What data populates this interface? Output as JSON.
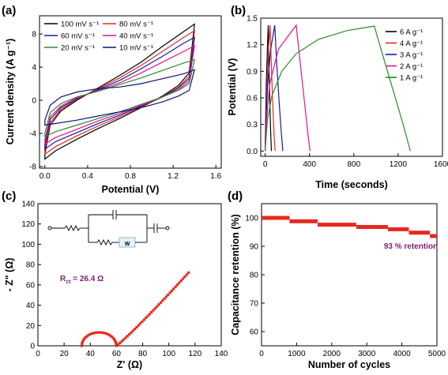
{
  "chart_data": [
    {
      "panel_label": "(a)",
      "type": "line",
      "xlabel": "Potential (V)",
      "ylabel": "Current density (A g⁻¹)",
      "xlim": [
        -0.05,
        1.65
      ],
      "ylim": [
        -8.2,
        10.2
      ],
      "x_ticks": [
        "0.0",
        "0.4",
        "0.8",
        "1.2",
        "1.6"
      ],
      "x_tick_values": [
        0.0,
        0.4,
        0.8,
        1.2,
        1.6
      ],
      "y_ticks": [
        "-8",
        "-4",
        "0",
        "4",
        "8"
      ],
      "y_tick_values": [
        -8,
        -4,
        0,
        4,
        8
      ],
      "legend_position": "top-left",
      "series": [
        {
          "name": "100 mV s⁻¹",
          "color": "#000000",
          "upper": [
            [
              0,
              -6.5
            ],
            [
              0.05,
              -3.0
            ],
            [
              0.15,
              -1.3
            ],
            [
              0.3,
              0.0
            ],
            [
              0.5,
              1.5
            ],
            [
              0.7,
              3.0
            ],
            [
              0.9,
              4.6
            ],
            [
              1.1,
              6.5
            ],
            [
              1.3,
              8.3
            ],
            [
              1.4,
              9.2
            ]
          ],
          "lower": [
            [
              0,
              -7.1
            ],
            [
              0.1,
              -6.1
            ],
            [
              0.3,
              -4.7
            ],
            [
              0.5,
              -3.4
            ],
            [
              0.7,
              -2.2
            ],
            [
              0.9,
              -0.9
            ],
            [
              1.1,
              0.5
            ],
            [
              1.25,
              1.8
            ],
            [
              1.35,
              3.3
            ],
            [
              1.4,
              9.2
            ]
          ]
        },
        {
          "name": "80 mV s⁻¹",
          "color": "#e8281e",
          "upper": [
            [
              0,
              -5.9
            ],
            [
              0.05,
              -2.7
            ],
            [
              0.15,
              -1.1
            ],
            [
              0.3,
              0.1
            ],
            [
              0.5,
              1.4
            ],
            [
              0.7,
              2.7
            ],
            [
              0.9,
              4.2
            ],
            [
              1.1,
              5.9
            ],
            [
              1.3,
              7.6
            ],
            [
              1.4,
              8.4
            ]
          ],
          "lower": [
            [
              0,
              -6.5
            ],
            [
              0.1,
              -5.6
            ],
            [
              0.3,
              -4.3
            ],
            [
              0.5,
              -3.1
            ],
            [
              0.7,
              -2.0
            ],
            [
              0.9,
              -0.8
            ],
            [
              1.1,
              0.4
            ],
            [
              1.25,
              1.6
            ],
            [
              1.35,
              2.9
            ],
            [
              1.4,
              8.4
            ]
          ]
        },
        {
          "name": "60 mV s⁻¹",
          "color": "#1a1aa8",
          "upper": [
            [
              0,
              -5.3
            ],
            [
              0.05,
              -2.3
            ],
            [
              0.15,
              -0.9
            ],
            [
              0.3,
              0.2
            ],
            [
              0.5,
              1.3
            ],
            [
              0.7,
              2.4
            ],
            [
              0.9,
              3.8
            ],
            [
              1.1,
              5.3
            ],
            [
              1.3,
              6.9
            ],
            [
              1.4,
              7.6
            ]
          ],
          "lower": [
            [
              0,
              -5.9
            ],
            [
              0.1,
              -5.0
            ],
            [
              0.3,
              -3.9
            ],
            [
              0.5,
              -2.8
            ],
            [
              0.7,
              -1.8
            ],
            [
              0.9,
              -0.7
            ],
            [
              1.1,
              0.4
            ],
            [
              1.25,
              1.5
            ],
            [
              1.35,
              2.6
            ],
            [
              1.4,
              7.6
            ]
          ]
        },
        {
          "name": "40 mV s⁻¹",
          "color": "#e0148c",
          "upper": [
            [
              0,
              -4.8
            ],
            [
              0.05,
              -2.0
            ],
            [
              0.15,
              -0.7
            ],
            [
              0.3,
              0.3
            ],
            [
              0.5,
              1.2
            ],
            [
              0.7,
              2.1
            ],
            [
              0.9,
              3.3
            ],
            [
              1.1,
              4.6
            ],
            [
              1.3,
              5.9
            ],
            [
              1.4,
              6.6
            ]
          ],
          "lower": [
            [
              0,
              -5.3
            ],
            [
              0.1,
              -4.5
            ],
            [
              0.3,
              -3.5
            ],
            [
              0.5,
              -2.5
            ],
            [
              0.7,
              -1.6
            ],
            [
              0.9,
              -0.6
            ],
            [
              1.1,
              0.4
            ],
            [
              1.25,
              1.3
            ],
            [
              1.35,
              2.3
            ],
            [
              1.4,
              6.6
            ]
          ]
        },
        {
          "name": "20 mV s⁻¹",
          "color": "#2a8c2a",
          "upper": [
            [
              0,
              -4.0
            ],
            [
              0.05,
              -1.5
            ],
            [
              0.15,
              -0.4
            ],
            [
              0.3,
              0.4
            ],
            [
              0.5,
              1.1
            ],
            [
              0.7,
              1.9
            ],
            [
              0.9,
              2.7
            ],
            [
              1.1,
              3.6
            ],
            [
              1.3,
              4.5
            ],
            [
              1.4,
              4.9
            ]
          ],
          "lower": [
            [
              0,
              -4.4
            ],
            [
              0.1,
              -3.8
            ],
            [
              0.3,
              -3.0
            ],
            [
              0.5,
              -2.2
            ],
            [
              0.7,
              -1.4
            ],
            [
              0.9,
              -0.5
            ],
            [
              1.1,
              0.4
            ],
            [
              1.25,
              1.2
            ],
            [
              1.35,
              2.0
            ],
            [
              1.4,
              4.9
            ]
          ]
        },
        {
          "name": "10 mV s⁻¹",
          "color": "#10107a",
          "upper": [
            [
              0,
              -2.4
            ],
            [
              0.05,
              -0.6
            ],
            [
              0.15,
              0.4
            ],
            [
              0.3,
              1.0
            ],
            [
              0.5,
              1.4
            ],
            [
              0.7,
              1.6
            ],
            [
              0.9,
              2.0
            ],
            [
              1.1,
              2.6
            ],
            [
              1.3,
              3.2
            ],
            [
              1.4,
              3.7
            ]
          ],
          "lower": [
            [
              0,
              -3.0
            ],
            [
              0.1,
              -2.8
            ],
            [
              0.3,
              -2.4
            ],
            [
              0.5,
              -1.9
            ],
            [
              0.7,
              -1.4
            ],
            [
              0.9,
              -0.9
            ],
            [
              1.1,
              -0.2
            ],
            [
              1.25,
              0.5
            ],
            [
              1.35,
              1.2
            ],
            [
              1.4,
              3.7
            ]
          ]
        }
      ]
    },
    {
      "panel_label": "(b)",
      "type": "line",
      "xlabel": "Time (seconds)",
      "ylabel": "Potential (V)",
      "xlim": [
        -40,
        1600
      ],
      "ylim": [
        -0.06,
        1.5
      ],
      "x_ticks": [
        "0",
        "400",
        "800",
        "1200",
        "1600"
      ],
      "x_tick_values": [
        0,
        400,
        800,
        1200,
        1600
      ],
      "y_ticks": [
        "0.0",
        "0.3",
        "0.6",
        "0.9",
        "1.2",
        "1.5"
      ],
      "y_tick_values": [
        0.0,
        0.3,
        0.6,
        0.9,
        1.2,
        1.5
      ],
      "legend_position": "top-right",
      "series": [
        {
          "name": "6 A g⁻¹",
          "color": "#000000",
          "x": [
            0,
            4,
            10,
            20,
            28,
            34,
            42,
            50,
            56
          ],
          "y": [
            0.0,
            0.35,
            0.75,
            1.15,
            1.42,
            0.95,
            0.55,
            0.2,
            0.0
          ]
        },
        {
          "name": "4 A g⁻¹",
          "color": "#e8281e",
          "x": [
            0,
            6,
            16,
            30,
            44,
            56,
            68,
            80,
            90
          ],
          "y": [
            0.0,
            0.35,
            0.75,
            1.15,
            1.42,
            0.95,
            0.55,
            0.2,
            0.0
          ]
        },
        {
          "name": "3 A g⁻¹",
          "color": "#1a1aa8",
          "x": [
            0,
            8,
            22,
            50,
            86,
            106,
            126,
            146,
            160
          ],
          "y": [
            0.0,
            0.35,
            0.75,
            1.15,
            1.42,
            0.95,
            0.55,
            0.2,
            0.0
          ]
        },
        {
          "name": "2 A g⁻¹",
          "color": "#e0148c",
          "x": [
            0,
            12,
            40,
            120,
            280,
            320,
            355,
            385,
            405
          ],
          "y": [
            0.0,
            0.35,
            0.75,
            1.15,
            1.42,
            0.95,
            0.55,
            0.2,
            0.0
          ]
        },
        {
          "name": "1 A g⁻¹",
          "color": "#2a8c2a",
          "x": [
            0,
            20,
            60,
            150,
            280,
            480,
            740,
            985,
            1010,
            1080,
            1170,
            1250,
            1310
          ],
          "y": [
            0.0,
            0.35,
            0.62,
            0.9,
            1.1,
            1.26,
            1.36,
            1.41,
            1.3,
            1.0,
            0.62,
            0.28,
            0.0
          ]
        }
      ]
    },
    {
      "panel_label": "(c)",
      "type": "scatter",
      "xlabel": "Z' (Ω)",
      "ylabel": "- Z\" (Ω)",
      "xlim": [
        0,
        140
      ],
      "ylim": [
        0,
        140
      ],
      "x_ticks": [
        "0",
        "20",
        "40",
        "60",
        "80",
        "100",
        "120",
        "140"
      ],
      "x_tick_values": [
        0,
        20,
        40,
        60,
        80,
        100,
        120,
        140
      ],
      "y_ticks": [
        "0",
        "20",
        "40",
        "60",
        "80",
        "100",
        "120",
        "140"
      ],
      "y_tick_values": [
        0,
        20,
        40,
        60,
        80,
        100,
        120,
        140
      ],
      "annotation": "R",
      "annotation_sub": "ct",
      "annotation_value": " = 26.4 Ω",
      "circuit_w_label": "W",
      "color": "#e8281e",
      "semicircle_start": 33.5,
      "semicircle_end": 59.9,
      "semicircle_points": 26,
      "tail_start": [
        59.9,
        0
      ],
      "tail_end": [
        115,
        72
      ],
      "tail_points": 40
    },
    {
      "panel_label": "(d)",
      "type": "scatter",
      "xlabel": "Number of cycles",
      "ylabel": "Capacitance retention (%)",
      "xlim": [
        0,
        5000
      ],
      "ylim": [
        55,
        105
      ],
      "x_ticks": [
        "0",
        "1000",
        "2000",
        "3000",
        "4000",
        "5000"
      ],
      "x_tick_values": [
        0,
        1000,
        2000,
        3000,
        4000,
        5000
      ],
      "y_ticks": [
        "60",
        "70",
        "80",
        "90",
        "100"
      ],
      "y_tick_values": [
        60,
        70,
        80,
        90,
        100
      ],
      "annotation": "93 % retention",
      "color": "#e8281e",
      "steps": [
        {
          "x_start": 0,
          "x_end": 800,
          "y": 100.0
        },
        {
          "x_start": 800,
          "x_end": 1600,
          "y": 98.8
        },
        {
          "x_start": 1600,
          "x_end": 2700,
          "y": 97.6
        },
        {
          "x_start": 2700,
          "x_end": 3600,
          "y": 96.8
        },
        {
          "x_start": 3600,
          "x_end": 4200,
          "y": 96.0
        },
        {
          "x_start": 4200,
          "x_end": 4800,
          "y": 94.8
        },
        {
          "x_start": 4800,
          "x_end": 5000,
          "y": 93.6
        }
      ]
    }
  ]
}
